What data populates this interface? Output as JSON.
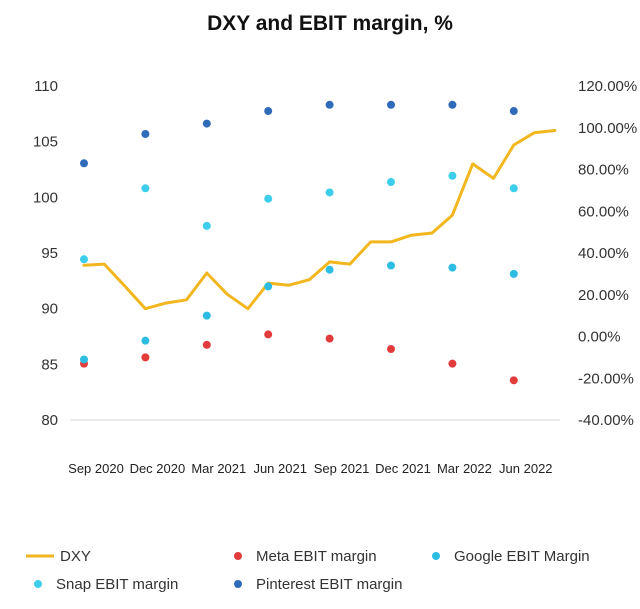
{
  "chart_data": {
    "type": "line",
    "title": "DXY and EBIT margin, %",
    "x_labels": [
      "Sep 2020",
      "Dec 2020",
      "Mar 2021",
      "Jun 2021",
      "Sep 2021",
      "Dec 2021",
      "Mar 2022",
      "Jun 2022"
    ],
    "left_axis": {
      "ylim": [
        80,
        110
      ],
      "ticks": [
        "80",
        "85",
        "90",
        "95",
        "100",
        "105",
        "110"
      ]
    },
    "right_axis": {
      "ylim": [
        -40,
        120
      ],
      "ticks": [
        "-40.00%",
        "-20.00%",
        "0.00%",
        "20.00%",
        "40.00%",
        "60.00%",
        "80.00%",
        "100.00%",
        "120.00%"
      ]
    },
    "dxy": {
      "name": "DXY",
      "color": "#F2B61F",
      "x": [
        0,
        0.33,
        0.67,
        1,
        1.33,
        1.67,
        2,
        2.33,
        2.67,
        3,
        3.33,
        3.67,
        4,
        4.33,
        4.67,
        5,
        5.33,
        5.67,
        6,
        6.33,
        6.67,
        7,
        7.33,
        7.67
      ],
      "values": [
        93.9,
        94.0,
        92.0,
        90.0,
        90.5,
        90.8,
        93.2,
        91.3,
        90.0,
        92.3,
        92.1,
        92.6,
        94.2,
        94.0,
        96.0,
        96.0,
        96.6,
        96.8,
        98.4,
        103.0,
        101.7,
        104.7,
        105.8,
        106.0
      ]
    },
    "series": [
      {
        "name": "Meta EBIT margin",
        "axis": "right",
        "color": "#E23B3B",
        "values": [
          -13,
          -10,
          -4,
          1,
          -1,
          -6,
          -13,
          -21
        ]
      },
      {
        "name": "Google EBIT Margin",
        "axis": "right",
        "color": "#2DBDE3",
        "values": [
          -11,
          -2,
          10,
          24,
          32,
          34,
          33,
          30
        ]
      },
      {
        "name": "Snap EBIT margin",
        "axis": "right",
        "color": "#3CCEEA",
        "values": [
          37,
          71,
          53,
          66,
          69,
          74,
          77,
          71
        ]
      },
      {
        "name": "Pinterest EBIT margin",
        "axis": "right",
        "color": "#2F6BB8",
        "values": [
          83,
          97,
          102,
          108,
          111,
          111,
          111,
          108
        ]
      }
    ],
    "legend": [
      {
        "name": "DXY",
        "marker": "line",
        "color": "#F2B61F"
      },
      {
        "name": "Meta EBIT margin",
        "marker": "dot",
        "color": "#E23B3B"
      },
      {
        "name": "Google EBIT Margin",
        "marker": "dot",
        "color": "#2DBDE3"
      },
      {
        "name": "Snap EBIT margin",
        "marker": "dot",
        "color": "#3CCEEA"
      },
      {
        "name": "Pinterest EBIT margin",
        "marker": "dot",
        "color": "#2F6BB8"
      }
    ],
    "legend_position": "bottom"
  }
}
